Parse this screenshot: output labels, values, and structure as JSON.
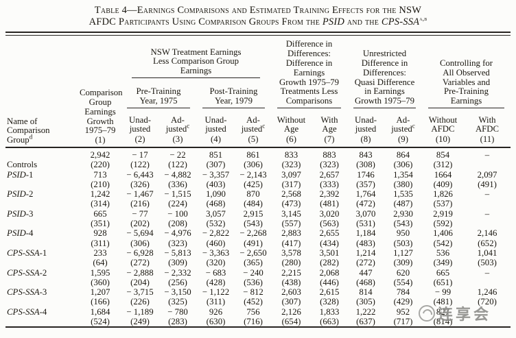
{
  "title": {
    "line1": "Table 4—Earnings Comparisons and Estimated Training Effects for the NSW",
    "line2": {
      "prefix": "AFDC Participants Using Comparison Groups From the ",
      "italic1": "PSID",
      "mid": " and the ",
      "italic2": "CPS-SSA",
      "sup": "a,b"
    }
  },
  "table": {
    "header": {
      "stub": {
        "text": "Name of\nComparison\nGroup",
        "sup": "d"
      },
      "col1": {
        "text": "Comparison\nGroup\nEarnings\nGrowth\n1975–79\n(1)"
      },
      "groups": [
        {
          "text": "NSW Treatment Earnings\nLess Comparison Group\nEarnings"
        },
        {
          "text": "Difference in\nDifferences:\nDifference in\nEarnings\nGrowth 1975–79\nTreatments Less\nComparisons"
        },
        {
          "text": "Unrestricted\nDifference in\nDifferences:\nQuasi Difference\nin Earnings\nGrowth 1975–79"
        },
        {
          "text": "Controlling for\nAll Observed\nVariables and\nPre-Training\nEarnings"
        }
      ],
      "subgroups": [
        {
          "text": "Pre-Training\nYear, 1975"
        },
        {
          "text": "Post-Training\nYear, 1979"
        }
      ],
      "leaves": [
        {
          "label": "Unad-\njusted",
          "sup": "",
          "num": "(2)"
        },
        {
          "label": "Ad-\njusted",
          "sup": "c",
          "num": "(3)"
        },
        {
          "label": "Unad-\njusted",
          "sup": "",
          "num": "(4)"
        },
        {
          "label": "Ad-\njusted",
          "sup": "c",
          "num": "(5)"
        },
        {
          "label": "Without\nAge",
          "sup": "",
          "num": "(6)"
        },
        {
          "label": "With\nAge",
          "sup": "",
          "num": "(7)"
        },
        {
          "label": "Unad-\njusted",
          "sup": "",
          "num": "(8)"
        },
        {
          "label": "Ad-\njusted",
          "sup": "c",
          "num": "(9)"
        },
        {
          "label": "Without\nAFDC",
          "sup": "",
          "num": "(10)"
        },
        {
          "label": "With\nAFDC",
          "sup": "",
          "num": "(11)"
        }
      ]
    },
    "rows": [
      {
        "name_italic": "",
        "name_roman": "Controls",
        "label_row": "se",
        "values": [
          "2,942",
          "− 17",
          "− 22",
          "851",
          "861",
          "833",
          "883",
          "843",
          "864",
          "854",
          "–"
        ],
        "ses": [
          "(220)",
          "(122)",
          "(122)",
          "(307)",
          "(306)",
          "(323)",
          "(323)",
          "(308)",
          "(306)",
          "(312)",
          ""
        ]
      },
      {
        "name_italic": "PSID",
        "name_roman": "-1",
        "label_row": "value",
        "values": [
          "713",
          "− 6,443",
          "− 4,882",
          "− 3,357",
          "− 2,143",
          "3,097",
          "2,657",
          "1746",
          "1,354",
          "1664",
          "2,097"
        ],
        "ses": [
          "(210)",
          "(326)",
          "(336)",
          "(403)",
          "(425)",
          "(317)",
          "(333)",
          "(357)",
          "(380)",
          "(409)",
          "(491)"
        ]
      },
      {
        "name_italic": "PSID",
        "name_roman": "-2",
        "label_row": "value",
        "values": [
          "1,242",
          "− 1,467",
          "− 1,515",
          "1,090",
          "870",
          "2,568",
          "2,392",
          "1,764",
          "1,535",
          "1,826",
          "–"
        ],
        "ses": [
          "(314)",
          "(216)",
          "(224)",
          "(468)",
          "(484)",
          "(473)",
          "(481)",
          "(472)",
          "(487)",
          "(537)",
          ""
        ]
      },
      {
        "name_italic": "PSID",
        "name_roman": "-3",
        "label_row": "value",
        "values": [
          "665",
          "− 77",
          "− 100",
          "3,057",
          "2,915",
          "3,145",
          "3,020",
          "3,070",
          "2,930",
          "2,919",
          "–"
        ],
        "ses": [
          "(351)",
          "(202)",
          "(208)",
          "(532)",
          "(543)",
          "(557)",
          "(563)",
          "(531)",
          "(543)",
          "(592)",
          ""
        ]
      },
      {
        "name_italic": "PSID",
        "name_roman": "-4",
        "label_row": "value",
        "values": [
          "928",
          "− 5,694",
          "− 4,976",
          "− 2,822",
          "− 2,268",
          "2,883",
          "2,655",
          "1,184",
          "950",
          "1,406",
          "2,146"
        ],
        "ses": [
          "(311)",
          "(306)",
          "(323)",
          "(460)",
          "(491)",
          "(417)",
          "(434)",
          "(483)",
          "(503)",
          "(542)",
          "(652)"
        ]
      },
      {
        "name_italic": "CPS-SSA",
        "name_roman": "-1",
        "label_row": "value",
        "values": [
          "233",
          "− 6,928",
          "− 5,813",
          "− 3,363",
          "− 2,650",
          "3,578",
          "3,501",
          "1,214",
          "1,127",
          "536",
          "1,041"
        ],
        "ses": [
          "(64)",
          "(272)",
          "(309)",
          "(320)",
          "(365)",
          "(280)",
          "(282)",
          "(272)",
          "(309)",
          "(349)",
          "(503)"
        ]
      },
      {
        "name_italic": "CPS-SSA",
        "name_roman": "-2",
        "label_row": "value",
        "values": [
          "1,595",
          "− 2,888",
          "− 2,332",
          "− 683",
          "− 240",
          "2,215",
          "2,068",
          "447",
          "620",
          "665",
          "–"
        ],
        "ses": [
          "(360)",
          "(204)",
          "(256)",
          "(428)",
          "(536)",
          "(438)",
          "(446)",
          "(468)",
          "(554)",
          "(651)",
          ""
        ]
      },
      {
        "name_italic": "CPS-SSA",
        "name_roman": "-3",
        "label_row": "value",
        "values": [
          "1,207",
          "− 3,715",
          "− 3,150",
          "− 1,122",
          "− 812",
          "2,603",
          "2,615",
          "814",
          "784",
          "− 99",
          "1,246"
        ],
        "ses": [
          "(166)",
          "(226)",
          "(325)",
          "(311)",
          "(452)",
          "(307)",
          "(328)",
          "(305)",
          "(429)",
          "(481)",
          "(720)"
        ]
      },
      {
        "name_italic": "CPS-SSA",
        "name_roman": "-4",
        "label_row": "value",
        "values": [
          "1,684",
          "− 1,189",
          "− 780",
          "926",
          "756",
          "2,126",
          "1,833",
          "1,222",
          "952",
          "827",
          ""
        ],
        "ses": [
          "(524)",
          "(249)",
          "(283)",
          "(630)",
          "(716)",
          "(654)",
          "(663)",
          "(637)",
          "(717)",
          "(814)",
          ""
        ]
      }
    ]
  },
  "watermark": {
    "text": "连享会"
  }
}
